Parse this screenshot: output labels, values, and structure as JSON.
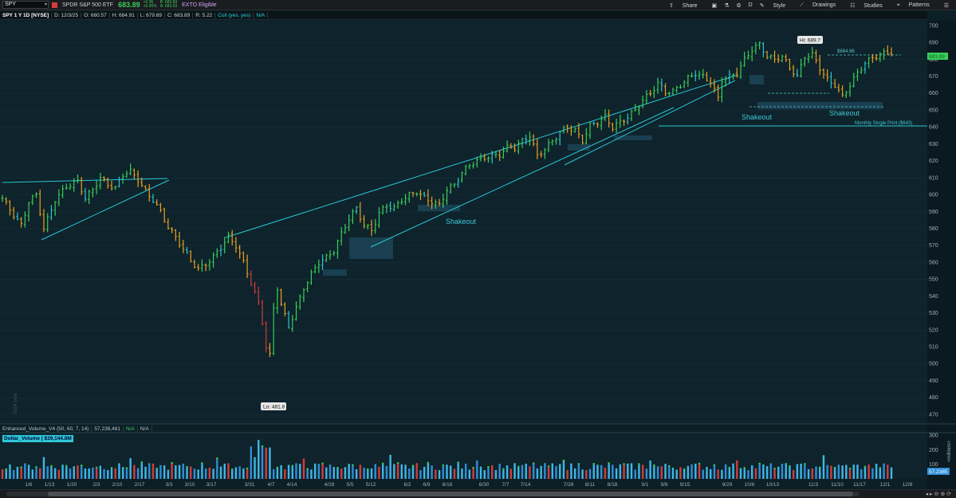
{
  "toolbar": {
    "symbol": "SPY",
    "description": "SPDR S&P 500 ETF",
    "price": "683.89",
    "change_top": "+2.96",
    "change_bottom": "+0.95%",
    "bid": "B: 683.83",
    "ask": "A: 683.93",
    "exto": "EXTO Eligible",
    "share": "Share",
    "period": "D",
    "style": "Style",
    "drawings": "Drawings",
    "studies": "Studies",
    "patterns": "Patterns"
  },
  "ohlc_bar": {
    "title": "SPY 1 Y 1D [NYSE]",
    "date": "D: 12/3/25",
    "open": "O: 680.57",
    "high": "H: 684.91",
    "low": "L: 679.69",
    "close": "C: 683.89",
    "range": "R: 5.22",
    "coil": "Coil (yes, yes)",
    "na": "N/A"
  },
  "logo": {
    "text": "SPDRs"
  },
  "side_year": "2024 year",
  "volume_panel": {
    "study": "Enhanced_Volume_V4 (50, 60, 7, 14)",
    "value": "57,238,481",
    "na1": "N/A",
    "na2": "N/A",
    "dollar_label": "Dollar_Volume",
    "dollar_value": "$39,144.8M",
    "unit_label": "<millions>",
    "current_tag": "57.2385",
    "y_ticks": [
      "300",
      "200",
      "100"
    ]
  },
  "annotations": {
    "hi": "Hi: 689.7",
    "lo": "Lo: 481.8",
    "level_label": "$684.96",
    "shakeout_1": "Shakeout",
    "shakeout_2": "Shakeout",
    "shakeout_3": "Shakeout",
    "monthly": "Monthly Single Print ($643)",
    "price_tag": "683.89"
  },
  "chart_data": {
    "type": "candlestick",
    "ylim": [
      465,
      703
    ],
    "y_ticks": [
      470,
      480,
      490,
      500,
      510,
      520,
      530,
      540,
      550,
      560,
      570,
      580,
      590,
      600,
      610,
      620,
      630,
      640,
      650,
      660,
      670,
      680,
      690,
      700
    ],
    "x_labels": [
      "1/6",
      "1/13",
      "1/20",
      "2/3",
      "2/10",
      "2/17",
      "3/3",
      "3/10",
      "3/17",
      "3/31",
      "4/7",
      "4/14",
      "4/28",
      "5/5",
      "5/12",
      "6/2",
      "6/9",
      "6/16",
      "6/30",
      "7/7",
      "7/14",
      "7/28",
      "8/11",
      "8/18",
      "9/1",
      "9/8",
      "9/15",
      "9/29",
      "10/6",
      "10/13",
      "11/3",
      "11/10",
      "11/17",
      "12/1",
      "12/8"
    ],
    "colors": {
      "up": "#3ccd5b",
      "down": "#e8a020",
      "neutral": "#2ac6d6",
      "big_down": "#d43b3b",
      "trend": "#2ac6d6",
      "zone": "#1e4a5e",
      "level": "#2ac6d6"
    },
    "anchors": [
      [
        0,
        598
      ],
      [
        3,
        588
      ],
      [
        5,
        582
      ],
      [
        7,
        596
      ],
      [
        9,
        600
      ],
      [
        11,
        580
      ],
      [
        14,
        597
      ],
      [
        17,
        605
      ],
      [
        20,
        608
      ],
      [
        22,
        598
      ],
      [
        24,
        603
      ],
      [
        26,
        610
      ],
      [
        28,
        606
      ],
      [
        30,
        604
      ],
      [
        32,
        612
      ],
      [
        34,
        614
      ],
      [
        36,
        609
      ],
      [
        38,
        602
      ],
      [
        40,
        597
      ],
      [
        42,
        590
      ],
      [
        44,
        581
      ],
      [
        46,
        575
      ],
      [
        48,
        568
      ],
      [
        50,
        561
      ],
      [
        52,
        556
      ],
      [
        54,
        559
      ],
      [
        56,
        563
      ],
      [
        58,
        569
      ],
      [
        60,
        575
      ],
      [
        62,
        570
      ],
      [
        64,
        560
      ],
      [
        66,
        548
      ],
      [
        68,
        536
      ],
      [
        69,
        525
      ],
      [
        70,
        510
      ],
      [
        71,
        505
      ],
      [
        72,
        533
      ],
      [
        73,
        545
      ],
      [
        74,
        535
      ],
      [
        76,
        522
      ],
      [
        78,
        533
      ],
      [
        80,
        545
      ],
      [
        82,
        553
      ],
      [
        84,
        560
      ],
      [
        86,
        563
      ],
      [
        88,
        567
      ],
      [
        90,
        577
      ],
      [
        92,
        586
      ],
      [
        94,
        592
      ],
      [
        96,
        582
      ],
      [
        98,
        579
      ],
      [
        100,
        589
      ],
      [
        102,
        594
      ],
      [
        104,
        592
      ],
      [
        106,
        597
      ],
      [
        108,
        600
      ],
      [
        110,
        602
      ],
      [
        112,
        598
      ],
      [
        114,
        596
      ],
      [
        116,
        594
      ],
      [
        118,
        603
      ],
      [
        120,
        606
      ],
      [
        122,
        613
      ],
      [
        124,
        618
      ],
      [
        126,
        620
      ],
      [
        128,
        622
      ],
      [
        130,
        623
      ],
      [
        132,
        624
      ],
      [
        134,
        628
      ],
      [
        136,
        628
      ],
      [
        138,
        632
      ],
      [
        140,
        635
      ],
      [
        142,
        623
      ],
      [
        144,
        627
      ],
      [
        146,
        632
      ],
      [
        148,
        637
      ],
      [
        150,
        640
      ],
      [
        152,
        638
      ],
      [
        154,
        632
      ],
      [
        156,
        641
      ],
      [
        158,
        643
      ],
      [
        160,
        646
      ],
      [
        162,
        640
      ],
      [
        164,
        643
      ],
      [
        166,
        646
      ],
      [
        168,
        650
      ],
      [
        170,
        656
      ],
      [
        172,
        660
      ],
      [
        174,
        666
      ],
      [
        176,
        661
      ],
      [
        178,
        661
      ],
      [
        180,
        665
      ],
      [
        182,
        669
      ],
      [
        184,
        672
      ],
      [
        186,
        670
      ],
      [
        188,
        667
      ],
      [
        190,
        657
      ],
      [
        191,
        668
      ],
      [
        193,
        670
      ],
      [
        195,
        672
      ],
      [
        197,
        680
      ],
      [
        199,
        686
      ],
      [
        201,
        689
      ],
      [
        203,
        682
      ],
      [
        205,
        680
      ],
      [
        207,
        682
      ],
      [
        209,
        675
      ],
      [
        211,
        670
      ],
      [
        213,
        682
      ],
      [
        215,
        683
      ],
      [
        217,
        675
      ],
      [
        219,
        668
      ],
      [
        221,
        665
      ],
      [
        223,
        658
      ],
      [
        225,
        665
      ],
      [
        227,
        672
      ],
      [
        229,
        678
      ],
      [
        231,
        681
      ],
      [
        233,
        683
      ],
      [
        235,
        684
      ]
    ],
    "volume": "estimated, millions, shares"
  }
}
